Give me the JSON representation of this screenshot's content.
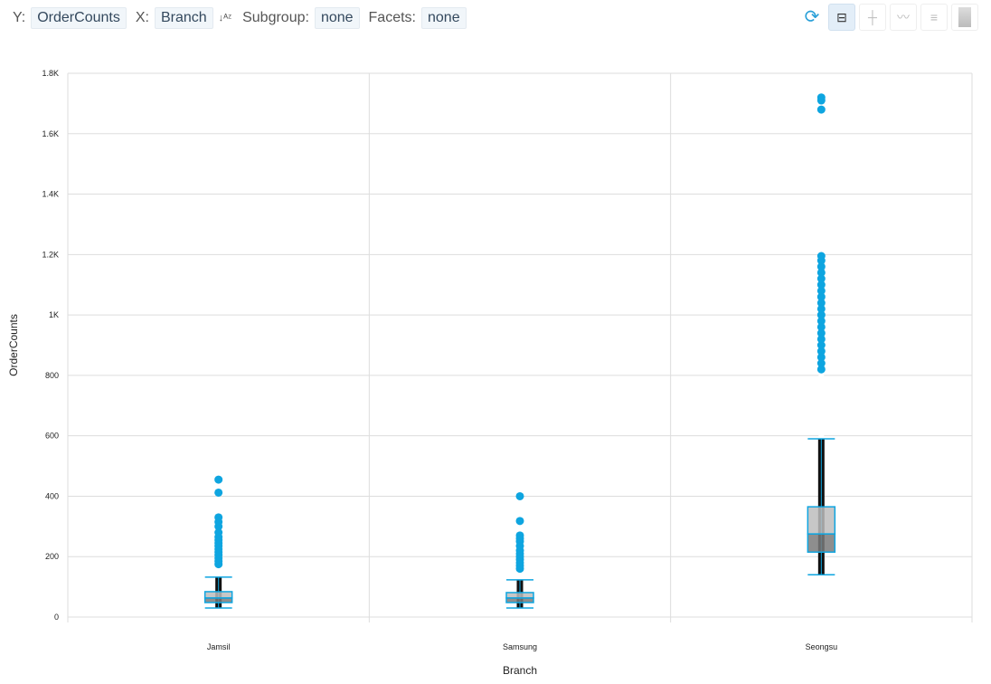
{
  "toolbar": {
    "y_label": "Y:",
    "y_value": "OrderCounts",
    "x_label": "X:",
    "x_value": "Branch",
    "subgroup_label": "Subgroup:",
    "subgroup_value": "none",
    "facets_label": "Facets:",
    "facets_value": "none"
  },
  "chart_icons": [
    "refresh-chart-icon",
    "boxplot-icon",
    "strip-plot-icon",
    "line-plot-icon",
    "histogram-icon",
    "heatmap-icon"
  ],
  "colors": {
    "accent": "#0ea5e0",
    "box_fill": "#9e9e9e",
    "points": "#111111",
    "grid": "#dddddd"
  },
  "chart_data": {
    "type": "box",
    "xlabel": "Branch",
    "ylabel": "OrderCounts",
    "ylim": [
      0,
      1800
    ],
    "yticks": [
      0,
      200,
      400,
      600,
      800,
      1000,
      1200,
      1400,
      1600,
      1800
    ],
    "ytick_labels": [
      "0",
      "200",
      "400",
      "600",
      "800",
      "1K",
      "1.2K",
      "1.4K",
      "1.6K",
      "1.8K"
    ],
    "grid": true,
    "categories": [
      "Jamsil",
      "Samsung",
      "Seongsu"
    ],
    "boxes": [
      {
        "min": 30,
        "q1": 48,
        "median": 63,
        "q3": 84,
        "max": 132,
        "outliers": [
          175,
          185,
          195,
          205,
          215,
          225,
          235,
          245,
          255,
          265,
          280,
          300,
          315,
          330,
          412,
          455
        ]
      },
      {
        "min": 30,
        "q1": 48,
        "median": 63,
        "q3": 81,
        "max": 123,
        "outliers": [
          160,
          170,
          180,
          190,
          200,
          210,
          220,
          235,
          250,
          260,
          270,
          318,
          400
        ]
      },
      {
        "min": 140,
        "q1": 215,
        "median": 275,
        "q3": 365,
        "max": 590,
        "outliers": [
          820,
          840,
          860,
          880,
          900,
          920,
          940,
          960,
          980,
          1000,
          1020,
          1040,
          1060,
          1080,
          1100,
          1120,
          1140,
          1160,
          1180,
          1195,
          1680,
          1710,
          1720
        ]
      }
    ]
  }
}
